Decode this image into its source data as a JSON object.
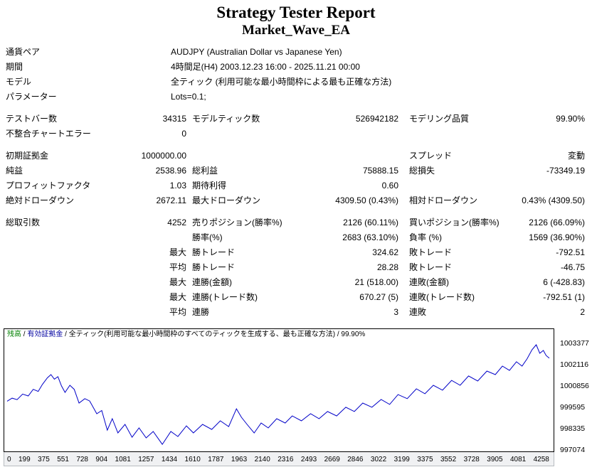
{
  "header": {
    "title": "Strategy Tester Report",
    "subtitle": "Market_Wave_EA"
  },
  "info_rows": [
    {
      "label": "通貨ペア",
      "value": "AUDJPY (Australian Dollar vs Japanese Yen)"
    },
    {
      "label": "期間",
      "value": "4時間足(H4) 2003.12.23 16:00 - 2025.11.21 00:00"
    },
    {
      "label": "モデル",
      "value": "全ティック (利用可能な最小時間枠による最も正確な方法)"
    },
    {
      "label": "パラメーター",
      "value": "Lots=0.1;"
    }
  ],
  "stat_rows": [
    {
      "gap": true,
      "cells": [
        "テストバー数",
        "34315",
        "モデルティック数",
        "526942182",
        "モデリング品質",
        "99.90%"
      ]
    },
    {
      "gap": false,
      "cells": [
        "不整合チャートエラー",
        "0",
        "",
        "",
        "",
        ""
      ]
    },
    {
      "gap": true,
      "cells": [
        "初期証拠金",
        "1000000.00",
        "",
        "",
        "スプレッド",
        "変動"
      ]
    },
    {
      "gap": false,
      "cells": [
        "純益",
        "2538.96",
        "総利益",
        "75888.15",
        "総損失",
        "-73349.19"
      ]
    },
    {
      "gap": false,
      "cells": [
        "プロフィットファクタ",
        "1.03",
        "期待利得",
        "0.60",
        "",
        ""
      ]
    },
    {
      "gap": false,
      "cells": [
        "絶対ドローダウン",
        "2672.11",
        "最大ドローダウン",
        "4309.50 (0.43%)",
        "相対ドローダウン",
        "0.43% (4309.50)"
      ]
    },
    {
      "gap": true,
      "cells": [
        "総取引数",
        "4252",
        "売りポジション(勝率%)",
        "2126 (60.11%)",
        "買いポジション(勝率%)",
        "2126 (66.09%)"
      ]
    },
    {
      "gap": false,
      "cells": [
        "",
        "",
        "勝率(%)",
        "2683 (63.10%)",
        "負率 (%)",
        "1569 (36.90%)"
      ]
    },
    {
      "gap": false,
      "cells": [
        "",
        "最大",
        "勝トレード",
        "324.62",
        "敗トレード",
        "-792.51"
      ]
    },
    {
      "gap": false,
      "cells": [
        "",
        "平均",
        "勝トレード",
        "28.28",
        "敗トレード",
        "-46.75"
      ]
    },
    {
      "gap": false,
      "cells": [
        "",
        "最大",
        "連勝(金額)",
        "21 (518.00)",
        "連敗(金額)",
        "6 (-428.83)"
      ]
    },
    {
      "gap": false,
      "cells": [
        "",
        "最大",
        "連勝(トレード数)",
        "670.27 (5)",
        "連敗(トレード数)",
        "-792.51 (1)"
      ]
    },
    {
      "gap": false,
      "cells": [
        "",
        "平均",
        "連勝",
        "3",
        "連敗",
        "2"
      ]
    }
  ],
  "chart_data": {
    "type": "line",
    "title": "",
    "legend_separator": " / ",
    "legend": [
      {
        "label": "残高",
        "color": "#008000"
      },
      {
        "label": "有効証拠金",
        "color": "#0000a0"
      },
      {
        "label": "全ティック(利用可能な最小時間枠のすべてのティックを生成する、最も正確な方法)",
        "color": "#000000"
      },
      {
        "label": "99.90%",
        "color": "#000000"
      }
    ],
    "line_color": "#0000c8",
    "xlabel": "",
    "ylabel": "",
    "xlim": [
      0,
      4258
    ],
    "ylim": [
      997074,
      1003377
    ],
    "x_ticks": [
      0,
      199,
      375,
      551,
      728,
      904,
      1081,
      1257,
      1434,
      1610,
      1787,
      1963,
      2140,
      2316,
      2493,
      2669,
      2846,
      3022,
      3199,
      3375,
      3552,
      3728,
      3905,
      4081,
      4258
    ],
    "y_ticks": [
      1003377,
      1002116,
      1000856,
      999595,
      998335,
      997074
    ],
    "series": [
      {
        "name": "残高",
        "points": [
          [
            0,
            1000000
          ],
          [
            39,
            1000180
          ],
          [
            78,
            1000090
          ],
          [
            122,
            1000420
          ],
          [
            166,
            1000310
          ],
          [
            205,
            1000700
          ],
          [
            244,
            1000580
          ],
          [
            277,
            1000990
          ],
          [
            316,
            1001380
          ],
          [
            344,
            1001570
          ],
          [
            371,
            1001300
          ],
          [
            399,
            1001450
          ],
          [
            427,
            1000900
          ],
          [
            455,
            1000520
          ],
          [
            493,
            1000940
          ],
          [
            527,
            1000700
          ],
          [
            565,
            999890
          ],
          [
            610,
            1000150
          ],
          [
            648,
            1000010
          ],
          [
            704,
            999260
          ],
          [
            743,
            999450
          ],
          [
            787,
            998290
          ],
          [
            826,
            998965
          ],
          [
            870,
            998125
          ],
          [
            926,
            998630
          ],
          [
            981,
            997870
          ],
          [
            1036,
            998420
          ],
          [
            1092,
            997830
          ],
          [
            1147,
            998210
          ],
          [
            1219,
            997450
          ],
          [
            1286,
            998210
          ],
          [
            1341,
            997910
          ],
          [
            1408,
            998540
          ],
          [
            1463,
            998125
          ],
          [
            1535,
            998630
          ],
          [
            1607,
            998330
          ],
          [
            1674,
            998840
          ],
          [
            1740,
            998500
          ],
          [
            1801,
            999550
          ],
          [
            1840,
            999050
          ],
          [
            1884,
            998630
          ],
          [
            1940,
            998120
          ],
          [
            1995,
            998710
          ],
          [
            2051,
            998420
          ],
          [
            2117,
            998965
          ],
          [
            2184,
            998710
          ],
          [
            2239,
            999130
          ],
          [
            2311,
            998840
          ],
          [
            2383,
            999260
          ],
          [
            2450,
            998965
          ],
          [
            2516,
            999390
          ],
          [
            2588,
            999130
          ],
          [
            2660,
            999640
          ],
          [
            2727,
            999390
          ],
          [
            2793,
            999890
          ],
          [
            2865,
            999640
          ],
          [
            2937,
            1000100
          ],
          [
            3004,
            999810
          ],
          [
            3070,
            1000390
          ],
          [
            3142,
            1000150
          ],
          [
            3214,
            1000730
          ],
          [
            3281,
            1000440
          ],
          [
            3347,
            1000940
          ],
          [
            3419,
            1000650
          ],
          [
            3491,
            1001230
          ],
          [
            3558,
            1000940
          ],
          [
            3624,
            1001490
          ],
          [
            3696,
            1001190
          ],
          [
            3768,
            1001780
          ],
          [
            3834,
            1001570
          ],
          [
            3890,
            1002075
          ],
          [
            3945,
            1001820
          ],
          [
            4000,
            1002330
          ],
          [
            4044,
            1002075
          ],
          [
            4083,
            1002500
          ],
          [
            4122,
            1003040
          ],
          [
            4155,
            1003335
          ],
          [
            4183,
            1002830
          ],
          [
            4211,
            1003000
          ],
          [
            4233,
            1002700
          ],
          [
            4258,
            1002539
          ]
        ]
      }
    ]
  }
}
